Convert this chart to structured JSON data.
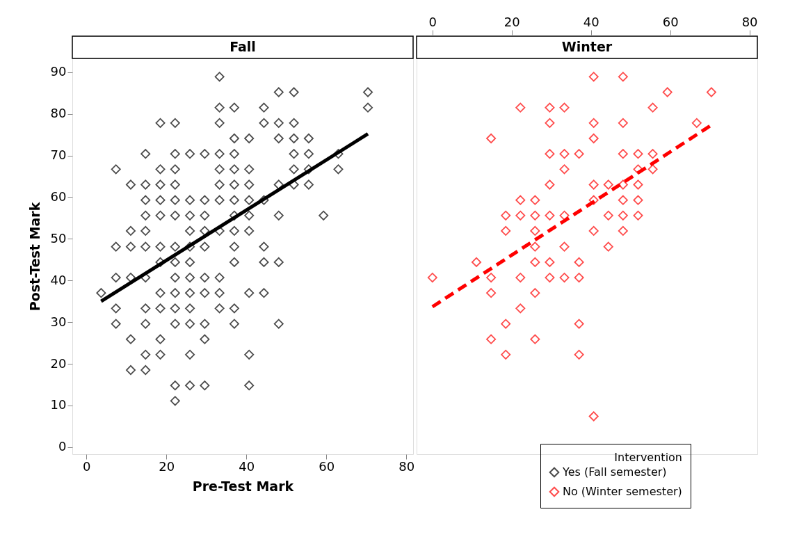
{
  "chart_data": [
    {
      "type": "scatter",
      "title": "Fall",
      "xlabel": "Pre-Test Mark",
      "ylabel": "Post-Test Mark",
      "xlim": [
        -3.5,
        81.7
      ],
      "ylim": [
        -1.7,
        93.3
      ],
      "xticks": [
        0,
        20,
        40,
        60,
        80
      ],
      "yticks": [
        0,
        10,
        20,
        30,
        40,
        50,
        60,
        70,
        80,
        90
      ],
      "grid": false,
      "series": [
        {
          "name": "Yes (Fall semester)",
          "color": "#000000",
          "marker": "diamond",
          "x": [
            33.3,
            48.1,
            51.9,
            70.4,
            33.3,
            37.0,
            44.4,
            70.4,
            18.5,
            22.2,
            33.3,
            44.4,
            48.1,
            51.9,
            37.0,
            40.7,
            48.1,
            51.9,
            55.6,
            14.8,
            22.2,
            25.9,
            29.6,
            33.3,
            37.0,
            51.9,
            55.6,
            63.0,
            7.4,
            18.5,
            22.2,
            33.3,
            37.0,
            40.7,
            51.9,
            55.6,
            63.0,
            11.1,
            14.8,
            18.5,
            22.2,
            33.3,
            37.0,
            40.7,
            48.1,
            51.9,
            55.6,
            14.8,
            18.5,
            22.2,
            25.9,
            29.6,
            33.3,
            37.0,
            40.7,
            44.4,
            14.8,
            18.5,
            22.2,
            25.9,
            29.6,
            37.0,
            40.7,
            48.1,
            59.3,
            11.1,
            14.8,
            25.9,
            29.6,
            33.3,
            37.0,
            40.7,
            7.4,
            11.1,
            14.8,
            18.5,
            22.2,
            25.9,
            29.6,
            37.0,
            44.4,
            18.5,
            22.2,
            25.9,
            37.0,
            44.4,
            48.1,
            7.4,
            11.1,
            14.8,
            22.2,
            25.9,
            29.6,
            33.3,
            3.7,
            18.5,
            22.2,
            25.9,
            29.6,
            33.3,
            40.7,
            44.4,
            7.4,
            14.8,
            18.5,
            22.2,
            25.9,
            33.3,
            37.0,
            7.4,
            14.8,
            22.2,
            25.9,
            29.6,
            37.0,
            48.1,
            11.1,
            18.5,
            29.6,
            14.8,
            18.5,
            25.9,
            40.7,
            11.1,
            14.8,
            22.2,
            25.9,
            29.6,
            40.7,
            22.2
          ],
          "values": [
            88.9,
            85.2,
            85.2,
            85.2,
            81.5,
            81.5,
            81.5,
            81.5,
            77.8,
            77.8,
            77.8,
            77.8,
            77.8,
            77.8,
            74.1,
            74.1,
            74.1,
            74.1,
            74.1,
            70.4,
            70.4,
            70.4,
            70.4,
            70.4,
            70.4,
            70.4,
            70.4,
            70.4,
            66.7,
            66.7,
            66.7,
            66.7,
            66.7,
            66.7,
            66.7,
            66.7,
            66.7,
            63.0,
            63.0,
            63.0,
            63.0,
            63.0,
            63.0,
            63.0,
            63.0,
            63.0,
            63.0,
            59.3,
            59.3,
            59.3,
            59.3,
            59.3,
            59.3,
            59.3,
            59.3,
            59.3,
            55.6,
            55.6,
            55.6,
            55.6,
            55.6,
            55.6,
            55.6,
            55.6,
            55.6,
            51.9,
            51.9,
            51.9,
            51.9,
            51.9,
            51.9,
            51.9,
            48.1,
            48.1,
            48.1,
            48.1,
            48.1,
            48.1,
            48.1,
            48.1,
            48.1,
            44.4,
            44.4,
            44.4,
            44.4,
            44.4,
            44.4,
            40.7,
            40.7,
            40.7,
            40.7,
            40.7,
            40.7,
            40.7,
            37.0,
            37.0,
            37.0,
            37.0,
            37.0,
            37.0,
            37.0,
            37.0,
            33.3,
            33.3,
            33.3,
            33.3,
            33.3,
            33.3,
            33.3,
            29.6,
            29.6,
            29.6,
            29.6,
            29.6,
            29.6,
            29.6,
            25.9,
            25.9,
            25.9,
            22.2,
            22.2,
            22.2,
            22.2,
            18.5,
            18.5,
            14.8,
            14.8,
            14.8,
            14.8,
            11.1
          ]
        },
        {
          "type": "line",
          "color": "#000000",
          "line_style": "solid",
          "x": [
            3.7,
            70.4
          ],
          "values": [
            35.0,
            75.2
          ]
        }
      ]
    },
    {
      "type": "scatter",
      "title": "Winter",
      "legend_title": "Intervention",
      "legend": "bottom right",
      "tick_labels": "x",
      "xlim": [
        -4.0,
        82.0
      ],
      "ylim": [
        -1.7,
        93.3
      ],
      "xticks": [
        0,
        20,
        40,
        60,
        80
      ],
      "grid": false,
      "series": [
        {
          "name": "No (Winter semester)",
          "color": "#ff0000",
          "marker": "diamond",
          "x": [
            40.7,
            48.1,
            59.3,
            70.4,
            22.2,
            29.6,
            33.3,
            55.6,
            29.6,
            40.7,
            48.1,
            66.7,
            14.8,
            40.7,
            29.6,
            33.3,
            37.0,
            48.1,
            51.9,
            55.6,
            33.3,
            51.9,
            55.6,
            29.6,
            40.7,
            44.4,
            48.1,
            51.9,
            22.2,
            25.9,
            40.7,
            48.1,
            51.9,
            18.5,
            22.2,
            25.9,
            29.6,
            33.3,
            44.4,
            48.1,
            51.9,
            18.5,
            25.9,
            40.7,
            48.1,
            25.9,
            33.3,
            44.4,
            11.1,
            25.9,
            29.6,
            37.0,
            0,
            14.8,
            22.2,
            29.6,
            33.3,
            37.0,
            14.8,
            25.9,
            22.2,
            18.5,
            37.0,
            14.8,
            25.9,
            18.5,
            37.0,
            40.7
          ],
          "values": [
            88.9,
            88.9,
            85.2,
            85.2,
            81.5,
            81.5,
            81.5,
            81.5,
            77.8,
            77.8,
            77.8,
            77.8,
            74.1,
            74.1,
            70.4,
            70.4,
            70.4,
            70.4,
            70.4,
            70.4,
            66.7,
            66.7,
            66.7,
            63.0,
            63.0,
            63.0,
            63.0,
            63.0,
            59.3,
            59.3,
            59.3,
            59.3,
            59.3,
            55.6,
            55.6,
            55.6,
            55.6,
            55.6,
            55.6,
            55.6,
            55.6,
            51.9,
            51.9,
            51.9,
            51.9,
            48.1,
            48.1,
            48.1,
            44.4,
            44.4,
            44.4,
            44.4,
            40.7,
            40.7,
            40.7,
            40.7,
            40.7,
            40.7,
            37.0,
            37.0,
            33.3,
            29.6,
            29.6,
            25.9,
            25.9,
            22.2,
            22.2,
            7.4
          ]
        },
        {
          "type": "line",
          "color": "#ff0000",
          "line_style": "dashed",
          "x": [
            0,
            70.4
          ],
          "values": [
            33.7,
            77.3
          ]
        }
      ]
    }
  ]
}
